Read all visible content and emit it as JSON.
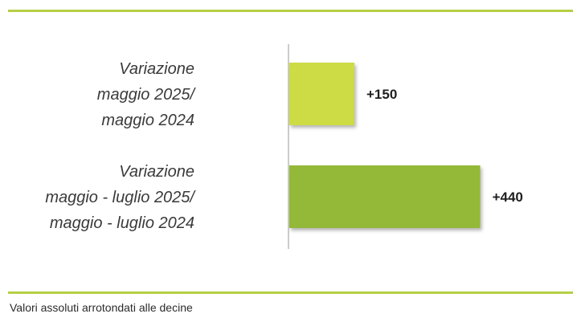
{
  "chart_data": {
    "type": "bar",
    "orientation": "horizontal",
    "categories": [
      [
        "Variazione",
        "maggio 2025/",
        "maggio 2024"
      ],
      [
        "Variazione",
        "maggio - luglio 2025/",
        "maggio - luglio 2024"
      ]
    ],
    "values": [
      150,
      440
    ],
    "value_labels": [
      "+150",
      "+440"
    ],
    "bar_colors": [
      "#cddc45",
      "#94b838"
    ],
    "xlim": [
      0,
      500
    ]
  },
  "footnote": "Valori assoluti arrotondati alle decine",
  "colors": {
    "rule": "#b5cf45",
    "axis": "#9a9a9a"
  }
}
